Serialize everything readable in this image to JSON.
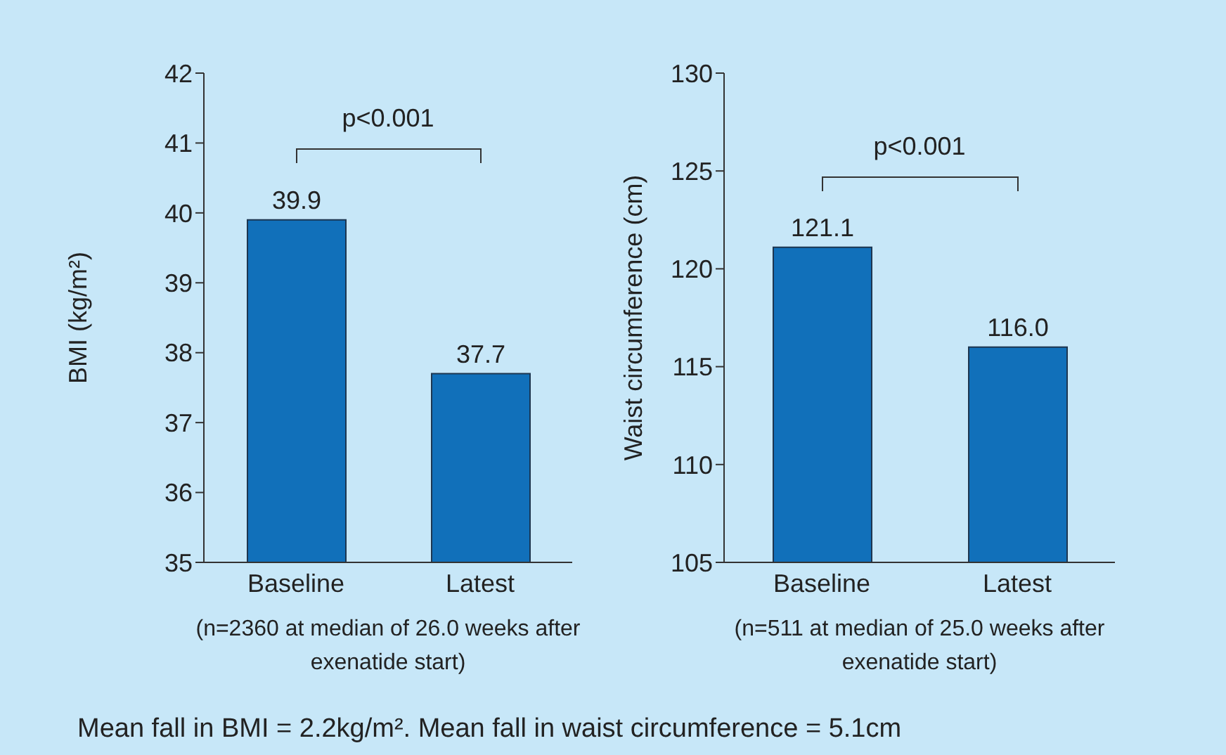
{
  "chart_data": [
    {
      "type": "bar",
      "categories": [
        "Baseline",
        "Latest"
      ],
      "values": [
        39.9,
        37.7
      ],
      "color": "#1170ba",
      "ylabel": "BMI (kg/m²)",
      "xlabel": "(n=2360 at median of 26.0 weeks after exenatide start)",
      "ylim": [
        35,
        42
      ],
      "yticks": [
        35,
        36,
        37,
        38,
        39,
        40,
        41,
        42
      ],
      "data_labels": true,
      "annotations": [
        "p<0.001",
        "Mean fall in BMI = 2.2kg/m². Mean fall in waist circumference = 5.1cm"
      ]
    },
    {
      "type": "bar",
      "categories": [
        "Baseline",
        "Latest"
      ],
      "values": [
        121.1,
        116.0
      ],
      "color": "#1170ba",
      "ylabel": "Waist circumference (cm)",
      "xlabel": "(n=511 at median of 25.0 weeks after exenatide start)",
      "ylim": [
        105,
        130
      ],
      "yticks": [
        105,
        110,
        115,
        120,
        125,
        130
      ],
      "value_labels": [
        "121.1",
        "116.0"
      ],
      "annotations": [
        "p<0.001"
      ]
    }
  ]
}
